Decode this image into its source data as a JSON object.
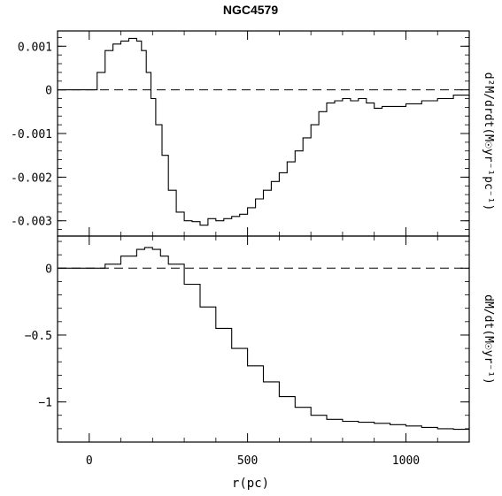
{
  "chart_data": {
    "type": "line",
    "title": "NGC4579",
    "xlabel": "r(pc)",
    "xlim": [
      -100,
      1200
    ],
    "x_ticks": [
      0,
      500,
      1000
    ],
    "x_tick_labels": [
      "0",
      "500",
      "1000"
    ],
    "panels": [
      {
        "ylabel": "d²M/drdt(M☉yr⁻¹pc⁻¹)",
        "ylim": [
          -0.00335,
          0.00135
        ],
        "y_ticks": [
          0.001,
          0,
          -0.001,
          -0.002,
          -0.003
        ],
        "y_tick_labels": [
          "0.001",
          "0",
          "-0.001",
          "-0.002",
          "-0.003"
        ],
        "reference_line": 0,
        "series": [
          {
            "style": "step",
            "x": [
              0,
              25,
              50,
              75,
              100,
              125,
              150,
              165,
              180,
              195,
              210,
              230,
              250,
              275,
              300,
              325,
              350,
              375,
              400,
              425,
              450,
              475,
              500,
              525,
              550,
              575,
              600,
              625,
              650,
              675,
              700,
              725,
              750,
              775,
              800,
              825,
              850,
              875,
              900,
              925,
              950,
              1000,
              1050,
              1100,
              1150,
              1200
            ],
            "y": [
              0.0,
              0.0004,
              0.0009,
              0.00105,
              0.00112,
              0.00118,
              0.00112,
              0.0009,
              0.0004,
              -0.0002,
              -0.0008,
              -0.0015,
              -0.0023,
              -0.0028,
              -0.003,
              -0.00302,
              -0.0031,
              -0.00295,
              -0.003,
              -0.00295,
              -0.0029,
              -0.00285,
              -0.0027,
              -0.0025,
              -0.0023,
              -0.0021,
              -0.0019,
              -0.00165,
              -0.0014,
              -0.0011,
              -0.0008,
              -0.0005,
              -0.0003,
              -0.00025,
              -0.0002,
              -0.00025,
              -0.0002,
              -0.0003,
              -0.00042,
              -0.00038,
              -0.00038,
              -0.00032,
              -0.00025,
              -0.0002,
              -0.00012,
              -0.00015
            ]
          }
        ]
      },
      {
        "ylabel": "dM/dt(M☉yr⁻¹)",
        "ylim": [
          -1.3,
          0.24
        ],
        "y_ticks": [
          0,
          -0.5,
          -1
        ],
        "y_tick_labels": [
          "0",
          "−0.5",
          "−1"
        ],
        "reference_line": 0,
        "series": [
          {
            "style": "step",
            "x": [
              0,
              50,
              100,
              150,
              175,
              200,
              225,
              250,
              300,
              350,
              400,
              450,
              500,
              550,
              600,
              650,
              700,
              750,
              800,
              850,
              900,
              950,
              1000,
              1050,
              1100,
              1150,
              1200
            ],
            "y": [
              0.0,
              0.03,
              0.09,
              0.14,
              0.155,
              0.14,
              0.09,
              0.03,
              -0.12,
              -0.29,
              -0.45,
              -0.6,
              -0.73,
              -0.85,
              -0.96,
              -1.04,
              -1.1,
              -1.13,
              -1.145,
              -1.152,
              -1.16,
              -1.17,
              -1.18,
              -1.19,
              -1.2,
              -1.205,
              -1.205
            ]
          }
        ]
      }
    ]
  }
}
